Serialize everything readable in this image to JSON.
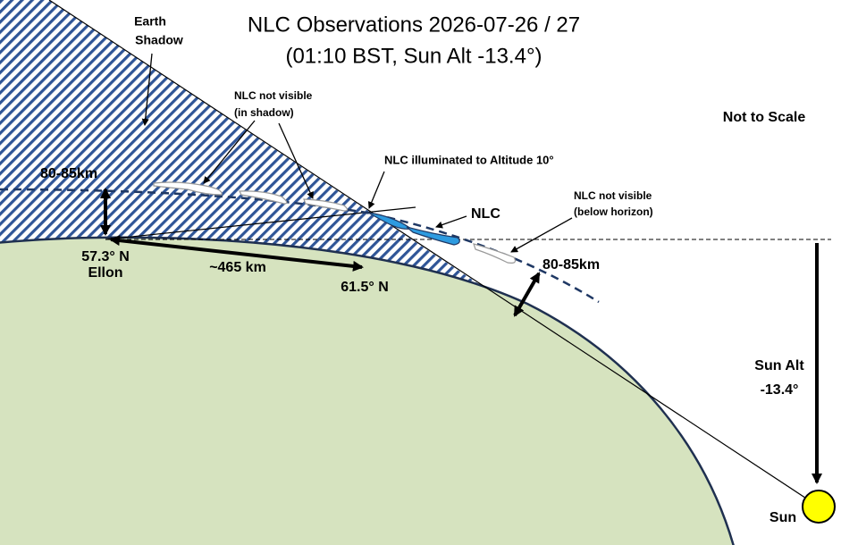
{
  "title": {
    "line1": "NLC Observations 2026-07-26 / 27",
    "line2": "(01:10 BST, Sun Alt -13.4°)"
  },
  "labels": {
    "earth_shadow": [
      "Earth",
      "Shadow"
    ],
    "nlc_in_shadow": [
      "NLC not visible",
      "(in shadow)"
    ],
    "not_to_scale": "Not to Scale",
    "nlc_illuminated": "NLC illuminated to Altitude 10°",
    "nlc": "NLC",
    "nlc_below_horizon": [
      "NLC not visible",
      "(below horizon)"
    ],
    "height_left": "80-85km",
    "height_right": "80-85km",
    "observer_lat": "57.3° N",
    "observer_name": "Ellon",
    "distance": "~465 km",
    "far_lat": "61.5° N",
    "sun_alt": [
      "Sun Alt",
      "-13.4°"
    ],
    "sun": "Sun"
  }
}
